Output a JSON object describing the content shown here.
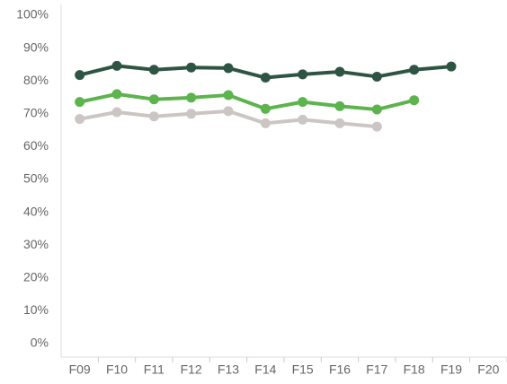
{
  "chart_data": {
    "type": "line",
    "categories": [
      "F09",
      "F10",
      "F11",
      "F12",
      "F13",
      "F14",
      "F15",
      "F16",
      "F17",
      "F18",
      "F19",
      "F20"
    ],
    "series": [
      {
        "color": "#2e5543",
        "values": [
          81.8,
          84.6,
          83.4,
          84.1,
          83.9,
          81.0,
          82.0,
          82.8,
          81.3,
          83.4,
          84.4,
          null
        ]
      },
      {
        "color": "#5db34d",
        "values": [
          73.6,
          76.0,
          74.4,
          74.9,
          75.7,
          71.5,
          73.6,
          72.3,
          71.3,
          74.1,
          null,
          null
        ]
      },
      {
        "color": "#cbc6c3",
        "values": [
          68.4,
          70.5,
          69.2,
          70.0,
          70.8,
          67.1,
          68.2,
          67.1,
          66.1,
          null,
          null,
          null
        ]
      }
    ],
    "ylim": [
      0,
      100
    ],
    "yticks": [
      {
        "value": 0,
        "label": "0%"
      },
      {
        "value": 10,
        "label": "10%"
      },
      {
        "value": 20,
        "label": "20%"
      },
      {
        "value": 30,
        "label": "30%"
      },
      {
        "value": 40,
        "label": "40%"
      },
      {
        "value": 50,
        "label": "50%"
      },
      {
        "value": 60,
        "label": "60%"
      },
      {
        "value": 70,
        "label": "70%"
      },
      {
        "value": 80,
        "label": "80%"
      },
      {
        "value": 90,
        "label": "90%"
      },
      {
        "value": 100,
        "label": "100%"
      }
    ]
  }
}
